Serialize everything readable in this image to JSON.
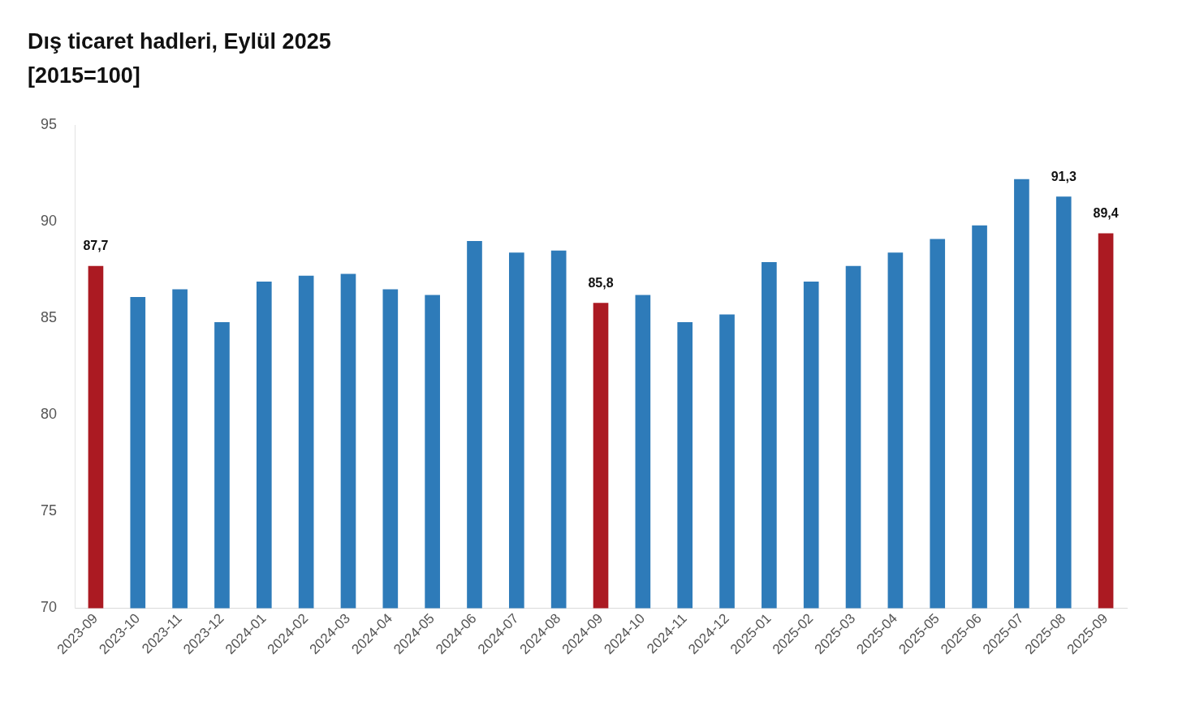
{
  "chart_data": {
    "type": "bar",
    "title": "Dış ticaret hadleri, Eylül 2025",
    "subtitle": "[2015=100]",
    "categories": [
      "2023-09",
      "2023-10",
      "2023-11",
      "2023-12",
      "2024-01",
      "2024-02",
      "2024-03",
      "2024-04",
      "2024-05",
      "2024-06",
      "2024-07",
      "2024-08",
      "2024-09",
      "2024-10",
      "2024-11",
      "2024-12",
      "2025-01",
      "2025-02",
      "2025-03",
      "2025-04",
      "2025-05",
      "2025-06",
      "2025-07",
      "2025-08",
      "2025-09"
    ],
    "values": [
      87.7,
      86.1,
      86.5,
      84.8,
      86.9,
      87.2,
      87.3,
      86.5,
      86.2,
      89.0,
      88.4,
      88.5,
      85.8,
      86.2,
      84.8,
      85.2,
      87.9,
      86.9,
      87.7,
      88.4,
      89.1,
      89.8,
      92.2,
      91.3,
      89.4
    ],
    "colors": [
      "#ab1a22",
      "#2e7bb9",
      "#2e7bb9",
      "#2e7bb9",
      "#2e7bb9",
      "#2e7bb9",
      "#2e7bb9",
      "#2e7bb9",
      "#2e7bb9",
      "#2e7bb9",
      "#2e7bb9",
      "#2e7bb9",
      "#ab1a22",
      "#2e7bb9",
      "#2e7bb9",
      "#2e7bb9",
      "#2e7bb9",
      "#2e7bb9",
      "#2e7bb9",
      "#2e7bb9",
      "#2e7bb9",
      "#2e7bb9",
      "#2e7bb9",
      "#2e7bb9",
      "#ab1a22"
    ],
    "value_labels": [
      "87,7",
      null,
      null,
      null,
      null,
      null,
      null,
      null,
      null,
      null,
      null,
      null,
      "85,8",
      null,
      null,
      null,
      null,
      null,
      null,
      null,
      null,
      null,
      null,
      "91,3",
      "89,4"
    ],
    "ylim": [
      70,
      95
    ],
    "yticks": [
      70,
      75,
      80,
      85,
      90,
      95
    ],
    "grid": false,
    "legend": false
  }
}
